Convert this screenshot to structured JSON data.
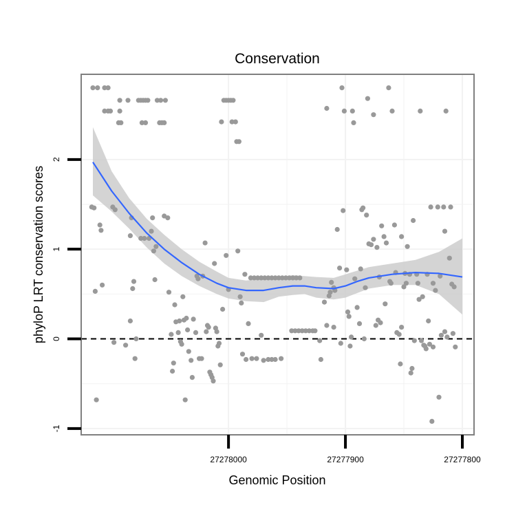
{
  "chart_data": {
    "type": "scatter",
    "title": "Conservation",
    "xlabel": "Genomic Position",
    "ylabel": "phyloP LRT conservation scores",
    "x_reversed": true,
    "xlim": [
      27278126,
      27277790
    ],
    "ylim": [
      -1.07,
      2.95
    ],
    "x_ticks": [
      27278000,
      27277900,
      27277800
    ],
    "x_tick_labels": [
      "27278000",
      "27277900",
      "27277800"
    ],
    "y_ticks": [
      -1,
      0,
      1,
      2
    ],
    "y_tick_labels": [
      "-1",
      "0",
      "1",
      "2"
    ],
    "reference_line": {
      "y": 0,
      "style": "dashed"
    },
    "colors": {
      "points": "#999999",
      "smooth_line": "#3366ff",
      "ribbon": "#cccccc",
      "panel_border": "#7f7f7f",
      "grid": "#f2f2f2"
    },
    "smooth": {
      "x": [
        27278116,
        27278100,
        27278085,
        27278070,
        27278055,
        27278040,
        27278025,
        27278010,
        27278000,
        27277985,
        27277970,
        27277957,
        27277945,
        27277935,
        27277925,
        27277910,
        27277900,
        27277890,
        27277880,
        27277860,
        27277840,
        27277820,
        27277800
      ],
      "y": [
        1.97,
        1.65,
        1.4,
        1.18,
        1.0,
        0.85,
        0.72,
        0.62,
        0.57,
        0.54,
        0.54,
        0.57,
        0.59,
        0.59,
        0.57,
        0.56,
        0.59,
        0.64,
        0.68,
        0.72,
        0.74,
        0.73,
        0.69
      ],
      "lower": [
        1.6,
        1.42,
        1.23,
        1.02,
        0.84,
        0.7,
        0.59,
        0.5,
        0.45,
        0.42,
        0.41,
        0.47,
        0.49,
        0.5,
        0.46,
        0.44,
        0.46,
        0.51,
        0.56,
        0.6,
        0.6,
        0.5,
        0.27
      ],
      "upper": [
        2.36,
        1.87,
        1.57,
        1.34,
        1.16,
        1.0,
        0.86,
        0.75,
        0.68,
        0.65,
        0.67,
        0.69,
        0.71,
        0.7,
        0.69,
        0.68,
        0.72,
        0.76,
        0.8,
        0.84,
        0.88,
        0.97,
        1.12
      ]
    },
    "points": [
      [
        27278116,
        2.8
      ],
      [
        27278112,
        2.8
      ],
      [
        27278115,
        1.46
      ],
      [
        27278117,
        1.47
      ],
      [
        27278114,
        0.53
      ],
      [
        27278113,
        -0.68
      ],
      [
        27278106,
        2.8
      ],
      [
        27278103,
        2.8
      ],
      [
        27278106,
        2.54
      ],
      [
        27278103,
        2.54
      ],
      [
        27278101,
        2.54
      ],
      [
        27278110,
        1.27
      ],
      [
        27278109,
        1.21
      ],
      [
        27278108,
        0.6
      ],
      [
        27278099,
        1.47
      ],
      [
        27278097,
        1.44
      ],
      [
        27278098,
        -0.04
      ],
      [
        27278093,
        2.54
      ],
      [
        27278094,
        2.41
      ],
      [
        27278093,
        2.66
      ],
      [
        27278092,
        2.41
      ],
      [
        27278086,
        2.66
      ],
      [
        27278088,
        -0.07
      ],
      [
        27278084,
        0.2
      ],
      [
        27278084,
        1.15
      ],
      [
        27278083,
        1.35
      ],
      [
        27278082,
        0.56
      ],
      [
        27278081,
        0.64
      ],
      [
        27278080,
        -0.22
      ],
      [
        27278079,
        0.0
      ],
      [
        27278077,
        2.66
      ],
      [
        27278075,
        2.66
      ],
      [
        27278073,
        2.66
      ],
      [
        27278071,
        2.66
      ],
      [
        27278069,
        2.66
      ],
      [
        27278075,
        1.12
      ],
      [
        27278072,
        1.12
      ],
      [
        27278068,
        1.12
      ],
      [
        27278074,
        2.41
      ],
      [
        27278071,
        2.41
      ],
      [
        27278066,
        1.2
      ],
      [
        27278065,
        1.35
      ],
      [
        27278064,
        0.98
      ],
      [
        27278063,
        0.66
      ],
      [
        27278062,
        1.03
      ],
      [
        27278061,
        2.66
      ],
      [
        27278058,
        2.66
      ],
      [
        27278059,
        2.41
      ],
      [
        27278057,
        2.41
      ],
      [
        27278054,
        2.66
      ],
      [
        27278055,
        2.41
      ],
      [
        27278055,
        1.37
      ],
      [
        27278052,
        1.35
      ],
      [
        27278051,
        0.52
      ],
      [
        27278049,
        0.05
      ],
      [
        27278047,
        -0.27
      ],
      [
        27278048,
        -0.36
      ],
      [
        27278046,
        0.38
      ],
      [
        27278045,
        0.19
      ],
      [
        27278043,
        0.07
      ],
      [
        27278042,
        0.2
      ],
      [
        27278041,
        -0.03
      ],
      [
        27278040,
        -0.06
      ],
      [
        27278039,
        0.47
      ],
      [
        27278038,
        0.21
      ],
      [
        27278037,
        -0.68
      ],
      [
        27278036,
        0.23
      ],
      [
        27278035,
        0.1
      ],
      [
        27278034,
        -0.14
      ],
      [
        27278032,
        -0.24
      ],
      [
        27278031,
        -0.43
      ],
      [
        27278030,
        0.22
      ],
      [
        27278028,
        0.07
      ],
      [
        27278027,
        0.7
      ],
      [
        27278026,
        0.67
      ],
      [
        27278025,
        -0.22
      ],
      [
        27278023,
        -0.22
      ],
      [
        27278022,
        0.7
      ],
      [
        27278020,
        1.07
      ],
      [
        27278019,
        0.08
      ],
      [
        27278018,
        0.15
      ],
      [
        27278017,
        0.13
      ],
      [
        27278016,
        -0.37
      ],
      [
        27278015,
        -0.4
      ],
      [
        27278014,
        -0.43
      ],
      [
        27278013,
        -0.47
      ],
      [
        27278012,
        0.84
      ],
      [
        27278011,
        0.12
      ],
      [
        27278010,
        0.08
      ],
      [
        27278009,
        -0.08
      ],
      [
        27278008,
        -0.05
      ],
      [
        27278007,
        -0.29
      ],
      [
        27278006,
        2.42
      ],
      [
        27278005,
        0.33
      ],
      [
        27278004,
        2.66
      ],
      [
        27278002,
        2.66
      ],
      [
        27278000,
        2.66
      ],
      [
        27277998,
        2.66
      ],
      [
        27277996,
        2.66
      ],
      [
        27278002,
        0.93
      ],
      [
        27278000,
        0.55
      ],
      [
        27277997,
        2.42
      ],
      [
        27277994,
        2.42
      ],
      [
        27277993,
        2.2
      ],
      [
        27277991,
        2.2
      ],
      [
        27277992,
        0.98
      ],
      [
        27277990,
        0.47
      ],
      [
        27277989,
        0.4
      ],
      [
        27277988,
        -0.17
      ],
      [
        27277986,
        0.72
      ],
      [
        27277985,
        -0.23
      ],
      [
        27277983,
        0.17
      ],
      [
        27277981,
        0.68
      ],
      [
        27277980,
        -0.22
      ],
      [
        27277978,
        0.68
      ],
      [
        27277975,
        0.68
      ],
      [
        27277972,
        0.68
      ],
      [
        27277969,
        0.68
      ],
      [
        27277966,
        0.68
      ],
      [
        27277963,
        0.68
      ],
      [
        27277960,
        0.68
      ],
      [
        27277957,
        0.68
      ],
      [
        27277954,
        0.68
      ],
      [
        27277951,
        0.68
      ],
      [
        27277948,
        0.68
      ],
      [
        27277945,
        0.68
      ],
      [
        27277942,
        0.68
      ],
      [
        27277939,
        0.68
      ],
      [
        27277976,
        -0.22
      ],
      [
        27277970,
        -0.24
      ],
      [
        27277966,
        -0.23
      ],
      [
        27277963,
        -0.23
      ],
      [
        27277960,
        -0.23
      ],
      [
        27277955,
        -0.22
      ],
      [
        27277972,
        0.04
      ],
      [
        27277946,
        0.09
      ],
      [
        27277943,
        0.09
      ],
      [
        27277940,
        0.09
      ],
      [
        27277937,
        0.09
      ],
      [
        27277934,
        0.09
      ],
      [
        27277931,
        0.09
      ],
      [
        27277928,
        0.09
      ],
      [
        27277926,
        0.09
      ],
      [
        27277922,
        -0.02
      ],
      [
        27277921,
        -0.23
      ],
      [
        27277918,
        0.41
      ],
      [
        27277916,
        2.57
      ],
      [
        27277916,
        0.15
      ],
      [
        27277914,
        0.48
      ],
      [
        27277913,
        0.52
      ],
      [
        27277912,
        0.63
      ],
      [
        27277910,
        0.57
      ],
      [
        27277910,
        0.13
      ],
      [
        27277909,
        0.54
      ],
      [
        27277907,
        1.22
      ],
      [
        27277905,
        0.79
      ],
      [
        27277904,
        -0.05
      ],
      [
        27277903,
        2.8
      ],
      [
        27277902,
        1.43
      ],
      [
        27277901,
        2.54
      ],
      [
        27277899,
        0.77
      ],
      [
        27277898,
        0.3
      ],
      [
        27277897,
        0.25
      ],
      [
        27277896,
        -0.08
      ],
      [
        27277895,
        0.02
      ],
      [
        27277894,
        2.54
      ],
      [
        27277893,
        2.41
      ],
      [
        27277892,
        0.67
      ],
      [
        27277890,
        0.35
      ],
      [
        27277888,
        0.17
      ],
      [
        27277887,
        0.78
      ],
      [
        27277886,
        1.44
      ],
      [
        27277885,
        1.46
      ],
      [
        27277884,
        0.0
      ],
      [
        27277883,
        0.57
      ],
      [
        27277882,
        1.38
      ],
      [
        27277881,
        2.68
      ],
      [
        27277880,
        1.06
      ],
      [
        27277878,
        1.05
      ],
      [
        27277876,
        2.5
      ],
      [
        27277876,
        1.11
      ],
      [
        27277874,
        0.15
      ],
      [
        27277873,
        1.02
      ],
      [
        27277872,
        0.21
      ],
      [
        27277871,
        0.69
      ],
      [
        27277870,
        0.18
      ],
      [
        27277869,
        1.26
      ],
      [
        27277867,
        1.14
      ],
      [
        27277866,
        0.39
      ],
      [
        27277865,
        1.07
      ],
      [
        27277863,
        2.8
      ],
      [
        27277862,
        0.64
      ],
      [
        27277861,
        0.62
      ],
      [
        27277860,
        2.54
      ],
      [
        27277858,
        1.27
      ],
      [
        27277857,
        0.74
      ],
      [
        27277856,
        0.07
      ],
      [
        27277854,
        0.05
      ],
      [
        27277853,
        -0.28
      ],
      [
        27277852,
        0.13
      ],
      [
        27277852,
        1.14
      ],
      [
        27277850,
        0.58
      ],
      [
        27277849,
        0.73
      ],
      [
        27277848,
        0.62
      ],
      [
        27277847,
        1.03
      ],
      [
        27277845,
        0.72
      ],
      [
        27277844,
        -0.38
      ],
      [
        27277843,
        -0.33
      ],
      [
        27277842,
        1.32
      ],
      [
        27277841,
        -0.02
      ],
      [
        27277839,
        0.72
      ],
      [
        27277838,
        0.62
      ],
      [
        27277837,
        0.44
      ],
      [
        27277836,
        2.54
      ],
      [
        27277835,
        -0.02
      ],
      [
        27277834,
        0.47
      ],
      [
        27277833,
        -0.07
      ],
      [
        27277832,
        -0.08
      ],
      [
        27277831,
        -0.11
      ],
      [
        27277830,
        0.72
      ],
      [
        27277829,
        0.2
      ],
      [
        27277828,
        -0.06
      ],
      [
        27277827,
        1.47
      ],
      [
        27277826,
        -0.92
      ],
      [
        27277825,
        -0.09
      ],
      [
        27277825,
        0.62
      ],
      [
        27277823,
        0.54
      ],
      [
        27277821,
        1.47
      ],
      [
        27277820,
        -0.65
      ],
      [
        27277819,
        0.7
      ],
      [
        27277818,
        0.04
      ],
      [
        27277816,
        1.47
      ],
      [
        27277815,
        0.08
      ],
      [
        27277815,
        1.2
      ],
      [
        27277814,
        2.54
      ],
      [
        27277813,
        0.02
      ],
      [
        27277811,
        0.9
      ],
      [
        27277810,
        1.47
      ],
      [
        27277809,
        0.61
      ],
      [
        27277808,
        0.06
      ],
      [
        27277807,
        0.58
      ],
      [
        27277806,
        -0.09
      ]
    ]
  }
}
